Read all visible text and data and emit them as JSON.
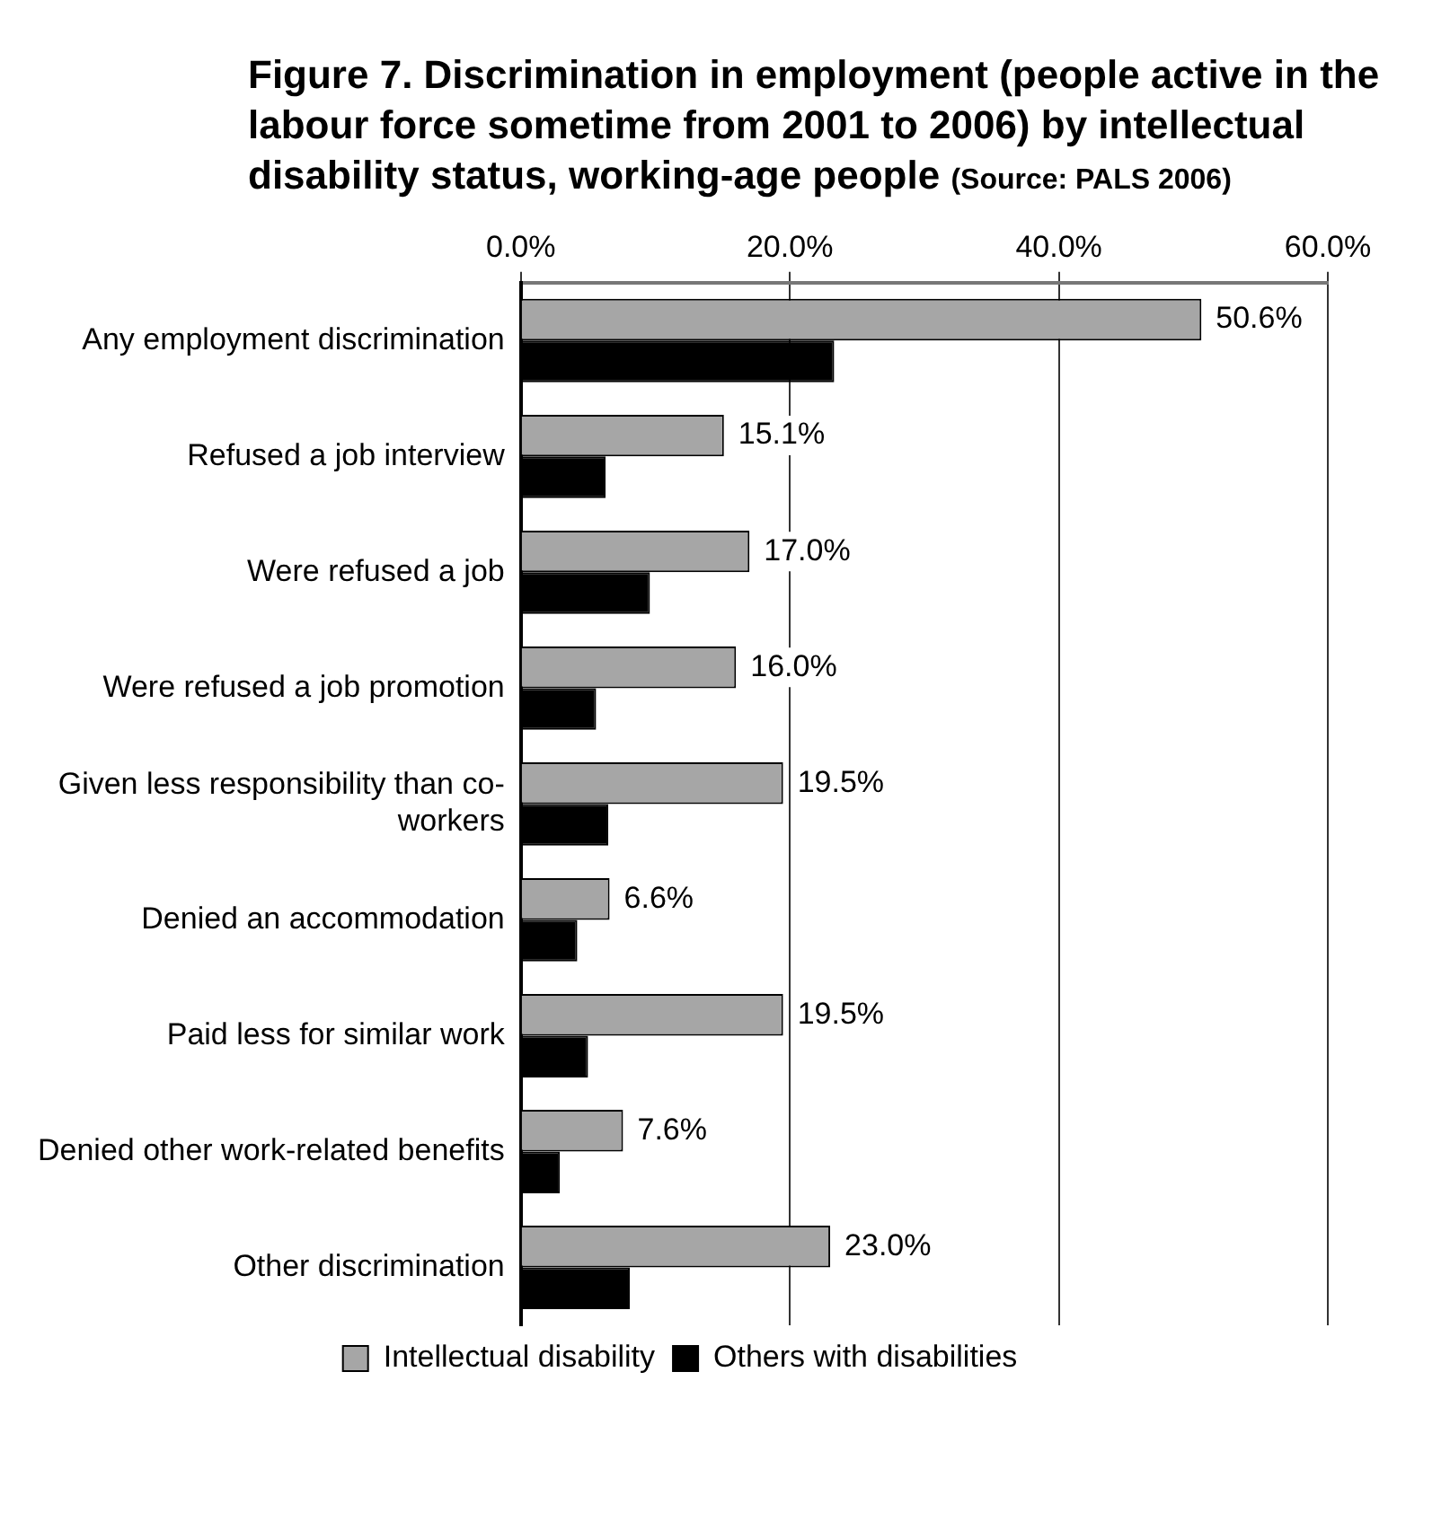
{
  "chart_data": {
    "type": "bar",
    "orientation": "horizontal",
    "title": "Figure 7. Discrimination in employment (people active in the labour force sometime from 2001 to 2006) by intellectual disability status, working-age people",
    "annotations": [
      "(Source: PALS 2006)"
    ],
    "categories": [
      "Any employment discrimination",
      "Refused a job interview",
      "Were refused a job",
      "Were refused a job promotion",
      "Given less responsibility than co-workers",
      "Denied an accommodation",
      "Paid less for similar work",
      "Denied other work-related benefits",
      "Other discrimination"
    ],
    "series": [
      {
        "name": "Intellectual disability",
        "color": "#a6a6a6",
        "values": [
          50.6,
          15.1,
          17.0,
          16.0,
          19.5,
          6.6,
          19.5,
          7.6,
          23.0
        ],
        "value_labels": [
          "50.6%",
          "15.1%",
          "17.0%",
          "16.0%",
          "19.5%",
          "6.6%",
          "19.5%",
          "7.6%",
          "23.0%"
        ]
      },
      {
        "name": "Others with disabilities",
        "color": "#000000",
        "values": [
          23.3,
          6.3,
          9.6,
          5.6,
          6.5,
          4.2,
          5.0,
          2.9,
          8.1
        ]
      }
    ],
    "xlim": [
      0,
      60
    ],
    "xticks": [
      {
        "value": 0,
        "label": "0.0%"
      },
      {
        "value": 20,
        "label": "20.0%"
      },
      {
        "value": 40,
        "label": "40.0%"
      },
      {
        "value": 60,
        "label": "60.0%"
      }
    ],
    "grid": "x",
    "legend": "bottom"
  }
}
